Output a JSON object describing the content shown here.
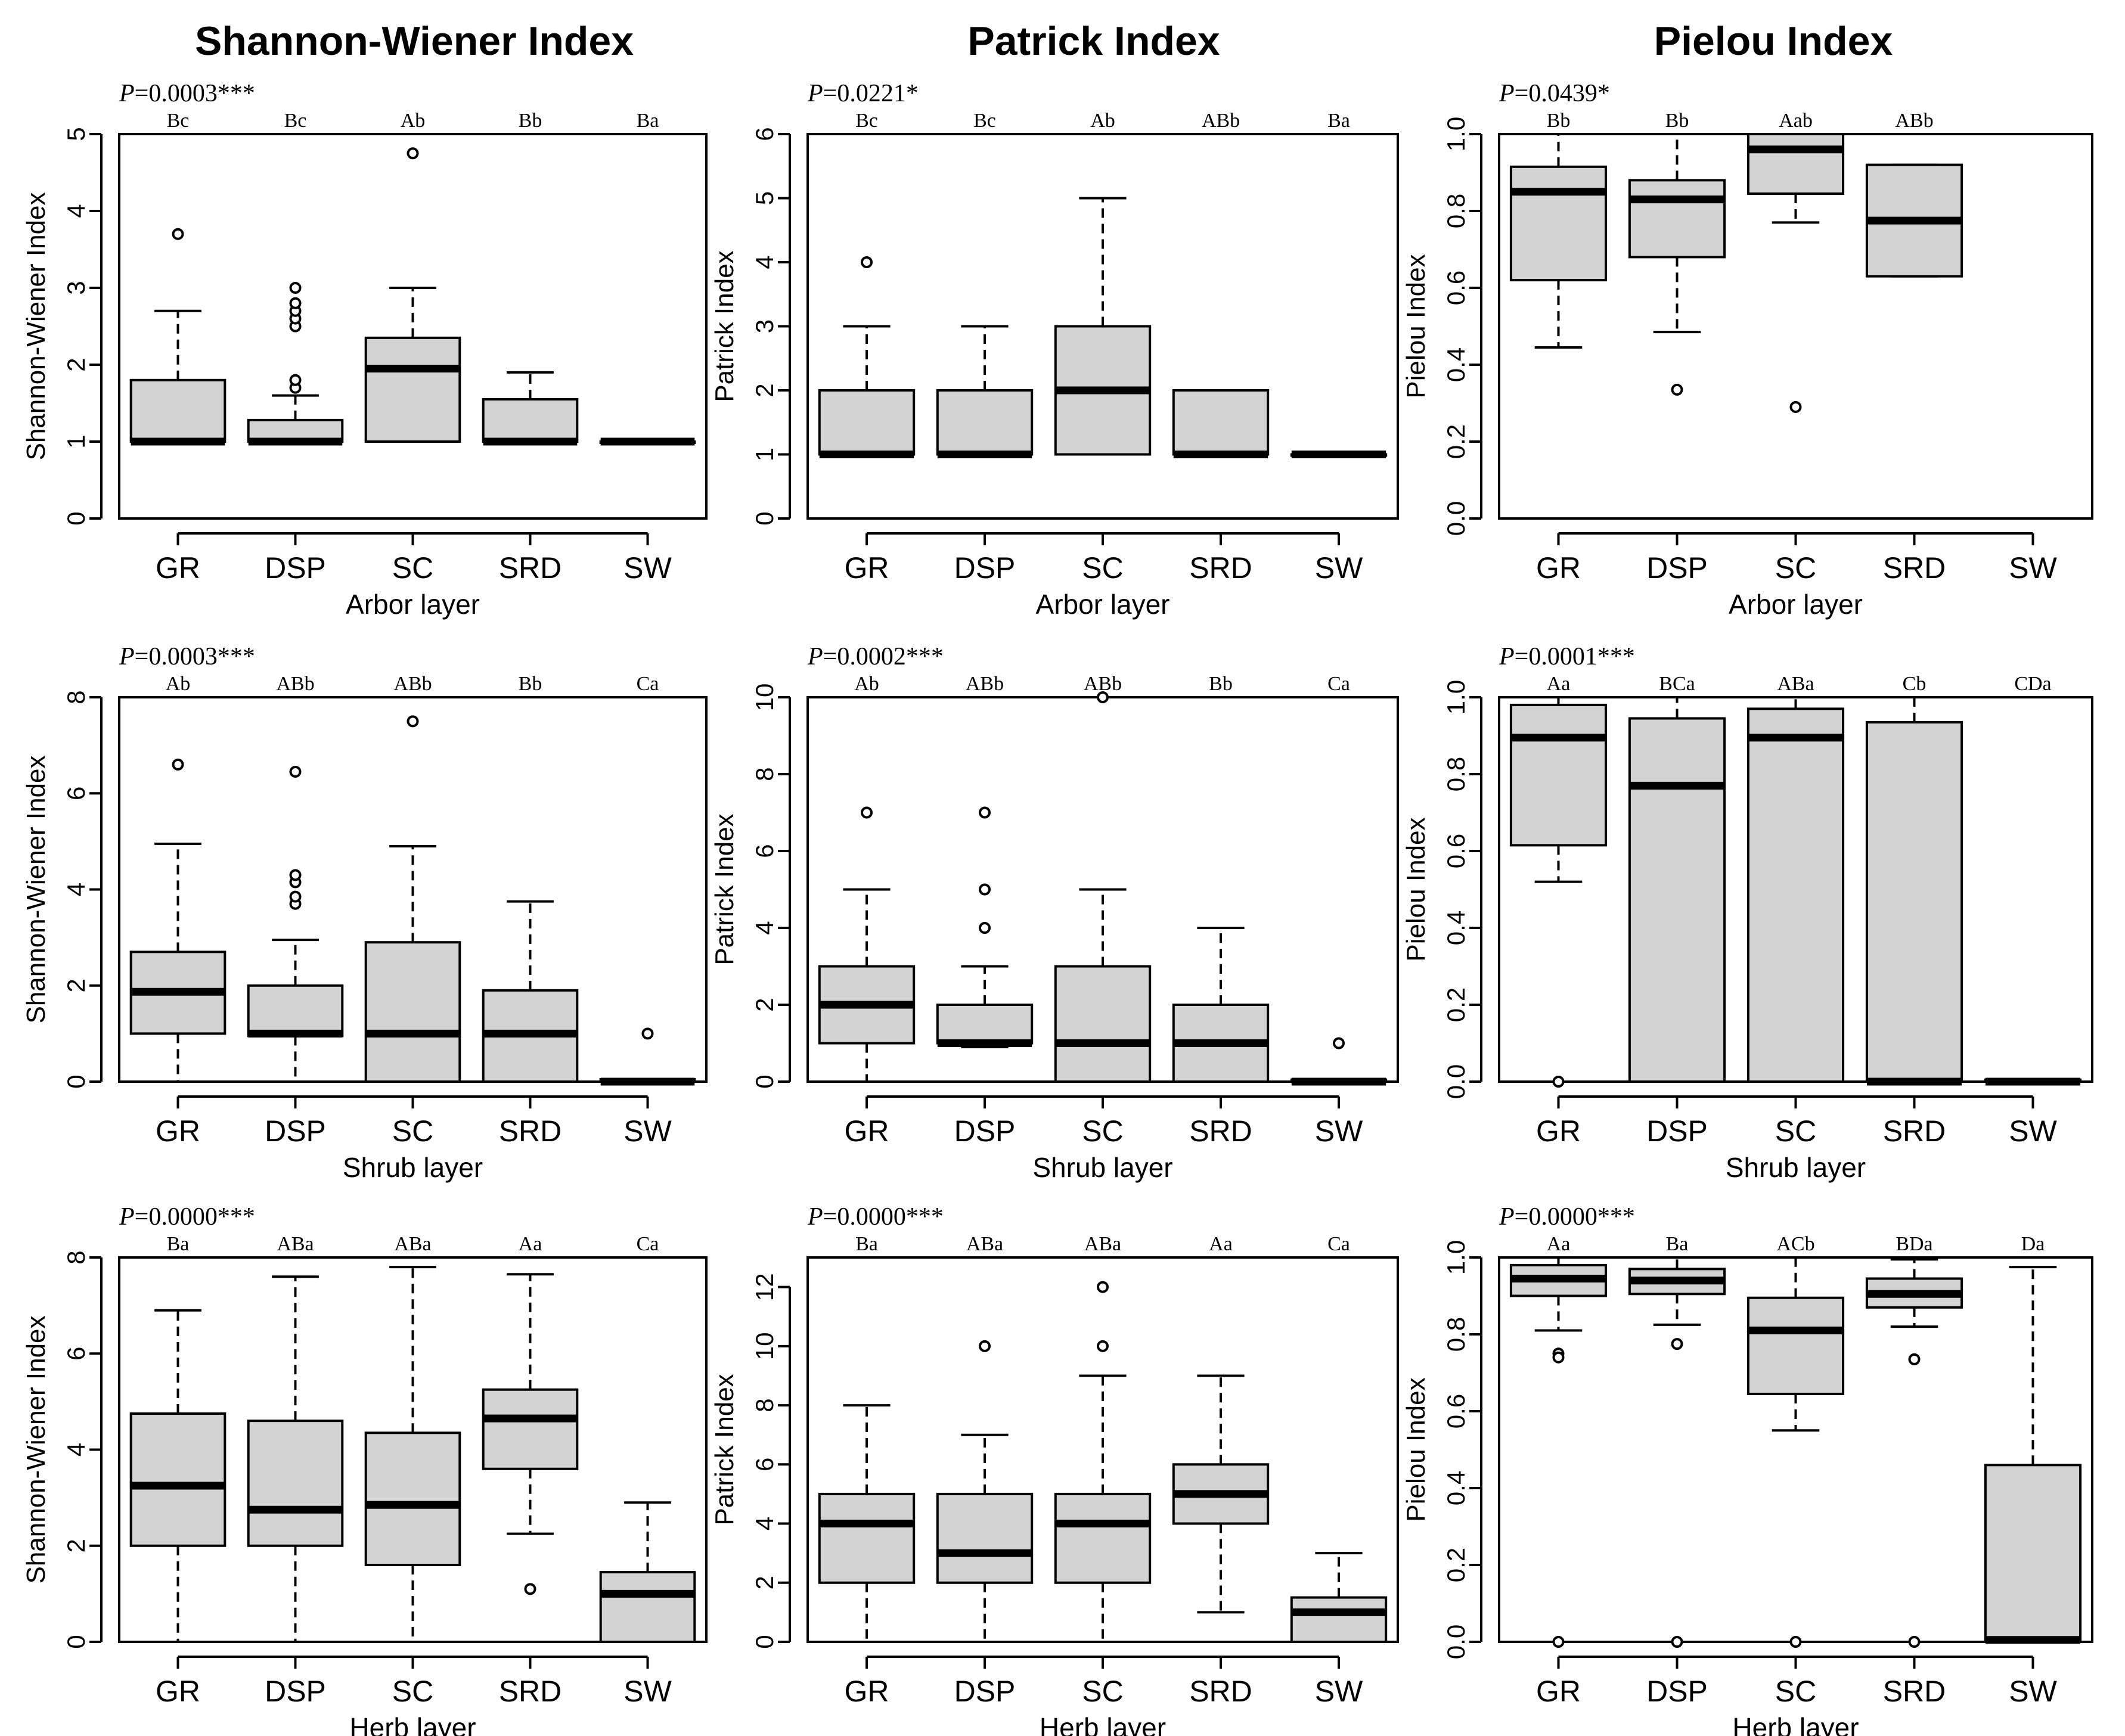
{
  "columns": [
    "Shannon-Wiener Index",
    "Patrick Index",
    "Pielou Index"
  ],
  "chart_data": [
    {
      "type": "box",
      "title": "Shannon-Wiener Index",
      "p_label": "P",
      "p_value": "=0.0003***",
      "ylabel": "Shannon-Wiener Index",
      "xlabel": "Arbor layer",
      "ylim": [
        0,
        5
      ],
      "yticks": [
        0,
        1,
        2,
        3,
        4,
        5
      ],
      "categories": [
        "GR",
        "DSP",
        "SC",
        "SRD",
        "SW"
      ],
      "group_letters": [
        "Bc",
        "Bc",
        "Ab",
        "Bb",
        "Ba"
      ],
      "boxes": [
        {
          "min": 1,
          "q1": 1,
          "median": 1,
          "q3": 1.8,
          "max": 2.7,
          "outliers": [
            3.7
          ]
        },
        {
          "min": 1,
          "q1": 1,
          "median": 1,
          "q3": 1.28,
          "max": 1.6,
          "outliers": [
            1.7,
            1.8,
            2.5,
            2.6,
            2.7,
            2.8,
            3.0
          ]
        },
        {
          "min": 1,
          "q1": 1,
          "median": 1.95,
          "q3": 2.35,
          "max": 3.0,
          "outliers": [
            4.75
          ]
        },
        {
          "min": 1,
          "q1": 1,
          "median": 1,
          "q3": 1.55,
          "max": 1.9,
          "outliers": []
        },
        {
          "min": 1,
          "q1": 1,
          "median": 1,
          "q3": 1,
          "max": 1,
          "outliers": []
        }
      ]
    },
    {
      "type": "box",
      "title": "Patrick Index",
      "p_label": "P",
      "p_value": "=0.0221*",
      "ylabel": "Patrick Index",
      "xlabel": "Arbor layer",
      "ylim": [
        0,
        6
      ],
      "yticks": [
        0,
        1,
        2,
        3,
        4,
        5,
        6
      ],
      "categories": [
        "GR",
        "DSP",
        "SC",
        "SRD",
        "SW"
      ],
      "group_letters": [
        "Bc",
        "Bc",
        "Ab",
        "ABb",
        "Ba"
      ],
      "boxes": [
        {
          "min": 1,
          "q1": 1,
          "median": 1,
          "q3": 2,
          "max": 3,
          "outliers": [
            4
          ]
        },
        {
          "min": 1,
          "q1": 1,
          "median": 1,
          "q3": 2,
          "max": 3,
          "outliers": []
        },
        {
          "min": 1,
          "q1": 1,
          "median": 2,
          "q3": 3,
          "max": 5,
          "outliers": []
        },
        {
          "min": 1,
          "q1": 1,
          "median": 1,
          "q3": 2,
          "max": 2,
          "outliers": []
        },
        {
          "min": 1,
          "q1": 1,
          "median": 1,
          "q3": 1,
          "max": 1,
          "outliers": []
        }
      ]
    },
    {
      "type": "box",
      "title": "Pielou Index",
      "p_label": "P",
      "p_value": "=0.0439*",
      "ylabel": "Pielou Index",
      "xlabel": "Arbor layer",
      "ylim": [
        0,
        1
      ],
      "yticks": [
        "0.0",
        "0.2",
        "0.4",
        "0.6",
        "0.8",
        "1.0"
      ],
      "categories": [
        "GR",
        "DSP",
        "SC",
        "SRD",
        "SW"
      ],
      "group_letters": [
        "Bb",
        "Bb",
        "Aab",
        "ABb",
        ""
      ],
      "boxes": [
        {
          "min": 0.445,
          "q1": 0.62,
          "median": 0.85,
          "q3": 0.915,
          "max": 1.0,
          "outliers": []
        },
        {
          "min": 0.485,
          "q1": 0.68,
          "median": 0.83,
          "q3": 0.88,
          "max": 1.0,
          "outliers": [
            0.335
          ]
        },
        {
          "min": 0.77,
          "q1": 0.845,
          "median": 0.96,
          "q3": 1.0,
          "max": 1.0,
          "outliers": [
            0.29
          ]
        },
        {
          "min": 0.63,
          "q1": 0.63,
          "median": 0.775,
          "q3": 0.92,
          "max": 0.92,
          "outliers": []
        },
        null
      ]
    },
    {
      "type": "box",
      "title": "Shannon-Wiener Index",
      "p_label": "P",
      "p_value": "=0.0003***",
      "ylabel": "Shannon-Wiener Index",
      "xlabel": "Shrub layer",
      "ylim": [
        0,
        8
      ],
      "yticks": [
        0,
        2,
        4,
        6,
        8
      ],
      "categories": [
        "GR",
        "DSP",
        "SC",
        "SRD",
        "SW"
      ],
      "group_letters": [
        "Ab",
        "ABb",
        "ABb",
        "Bb",
        "Ca"
      ],
      "boxes": [
        {
          "min": 0,
          "q1": 1,
          "median": 1.87,
          "q3": 2.7,
          "max": 4.95,
          "outliers": [
            6.6
          ]
        },
        {
          "min": 0,
          "q1": 0.95,
          "median": 1.0,
          "q3": 2.0,
          "max": 2.95,
          "outliers": [
            3.7,
            3.85,
            4.15,
            4.3,
            6.45
          ]
        },
        {
          "min": 0,
          "q1": 0,
          "median": 1.0,
          "q3": 2.9,
          "max": 4.9,
          "outliers": [
            7.5
          ]
        },
        {
          "min": 0,
          "q1": 0,
          "median": 1.0,
          "q3": 1.9,
          "max": 3.75,
          "outliers": []
        },
        {
          "min": 0,
          "q1": 0,
          "median": 0,
          "q3": 0.05,
          "max": 0.05,
          "outliers": [
            1.0
          ]
        }
      ]
    },
    {
      "type": "box",
      "title": "Patrick Index",
      "p_label": "P",
      "p_value": "=0.0002***",
      "ylabel": "Patrick Index",
      "xlabel": "Shrub layer",
      "ylim": [
        0,
        10
      ],
      "yticks": [
        0,
        2,
        4,
        6,
        8,
        10
      ],
      "categories": [
        "GR",
        "DSP",
        "SC",
        "SRD",
        "SW"
      ],
      "group_letters": [
        "Ab",
        "ABb",
        "ABb",
        "Bb",
        "Ca"
      ],
      "boxes": [
        {
          "min": 0,
          "q1": 1,
          "median": 2,
          "q3": 3,
          "max": 5,
          "outliers": [
            7
          ]
        },
        {
          "min": 0.9,
          "q1": 1,
          "median": 1,
          "q3": 2,
          "max": 3,
          "outliers": [
            4,
            5,
            7
          ]
        },
        {
          "min": 0,
          "q1": 0,
          "median": 1,
          "q3": 3,
          "max": 5,
          "outliers": [
            10
          ]
        },
        {
          "min": 0,
          "q1": 0,
          "median": 1,
          "q3": 2,
          "max": 4,
          "outliers": []
        },
        {
          "min": 0,
          "q1": 0,
          "median": 0,
          "q3": 0.05,
          "max": 0.05,
          "outliers": [
            1
          ]
        }
      ]
    },
    {
      "type": "box",
      "title": "Pielou Index",
      "p_label": "P",
      "p_value": "=0.0001***",
      "ylabel": "Pielou Index",
      "xlabel": "Shrub layer",
      "ylim": [
        0,
        1
      ],
      "yticks": [
        "0.0",
        "0.2",
        "0.4",
        "0.6",
        "0.8",
        "1.0"
      ],
      "categories": [
        "GR",
        "DSP",
        "SC",
        "SRD",
        "SW"
      ],
      "group_letters": [
        "Aa",
        "BCa",
        "ABa",
        "Cb",
        "CDa"
      ],
      "boxes": [
        {
          "min": 0.52,
          "q1": 0.615,
          "median": 0.895,
          "q3": 0.98,
          "max": 1.0,
          "outliers": [
            0.0
          ]
        },
        {
          "min": 0,
          "q1": 0,
          "median": 0.77,
          "q3": 0.945,
          "max": 1.0,
          "outliers": []
        },
        {
          "min": 0,
          "q1": 0,
          "median": 0.895,
          "q3": 0.97,
          "max": 1.0,
          "outliers": []
        },
        {
          "min": 0,
          "q1": 0,
          "median": 0,
          "q3": 0.935,
          "max": 1.0,
          "outliers": []
        },
        {
          "min": 0,
          "q1": 0,
          "median": 0,
          "q3": 0.005,
          "max": 0.005,
          "outliers": []
        }
      ]
    },
    {
      "type": "box",
      "title": "Shannon-Wiener Index",
      "p_label": "P",
      "p_value": "=0.0000***",
      "ylabel": "Shannon-Wiener Index",
      "xlabel": "Herb layer",
      "ylim": [
        0,
        8
      ],
      "yticks": [
        0,
        2,
        4,
        6,
        8
      ],
      "categories": [
        "GR",
        "DSP",
        "SC",
        "SRD",
        "SW"
      ],
      "group_letters": [
        "Ba",
        "ABa",
        "ABa",
        "Aa",
        "Ca"
      ],
      "boxes": [
        {
          "min": 0,
          "q1": 2.0,
          "median": 3.25,
          "q3": 4.75,
          "max": 6.9,
          "outliers": []
        },
        {
          "min": 0,
          "q1": 2.0,
          "median": 2.75,
          "q3": 4.6,
          "max": 7.6,
          "outliers": []
        },
        {
          "min": 0,
          "q1": 1.6,
          "median": 2.85,
          "q3": 4.35,
          "max": 7.8,
          "outliers": []
        },
        {
          "min": 2.25,
          "q1": 3.6,
          "median": 4.65,
          "q3": 5.25,
          "max": 7.65,
          "outliers": [
            1.1
          ]
        },
        {
          "min": 0,
          "q1": 0,
          "median": 1.0,
          "q3": 1.45,
          "max": 2.9,
          "outliers": []
        }
      ]
    },
    {
      "type": "box",
      "title": "Patrick Index",
      "p_label": "P",
      "p_value": "=0.0000***",
      "ylabel": "Patrick Index",
      "xlabel": "Herb layer",
      "ylim": [
        0,
        13
      ],
      "yticks": [
        0,
        2,
        4,
        6,
        8,
        10,
        12
      ],
      "categories": [
        "GR",
        "DSP",
        "SC",
        "SRD",
        "SW"
      ],
      "group_letters": [
        "Ba",
        "ABa",
        "ABa",
        "Aa",
        "Ca"
      ],
      "boxes": [
        {
          "min": 0,
          "q1": 2,
          "median": 4,
          "q3": 5,
          "max": 8,
          "outliers": []
        },
        {
          "min": 0,
          "q1": 2,
          "median": 3,
          "q3": 5,
          "max": 7,
          "outliers": [
            10
          ]
        },
        {
          "min": 0,
          "q1": 2,
          "median": 4,
          "q3": 5,
          "max": 9,
          "outliers": [
            10,
            12
          ]
        },
        {
          "min": 1,
          "q1": 4,
          "median": 5,
          "q3": 6,
          "max": 9,
          "outliers": []
        },
        {
          "min": 0,
          "q1": 0,
          "median": 1,
          "q3": 1.5,
          "max": 3,
          "outliers": []
        }
      ]
    },
    {
      "type": "box",
      "title": "Pielou Index",
      "p_label": "P",
      "p_value": "=0.0000***",
      "ylabel": "Pielou Index",
      "xlabel": "Herb layer",
      "ylim": [
        0,
        1
      ],
      "yticks": [
        "0.0",
        "0.2",
        "0.4",
        "0.6",
        "0.8",
        "1.0"
      ],
      "categories": [
        "GR",
        "DSP",
        "SC",
        "SRD",
        "SW"
      ],
      "group_letters": [
        "Aa",
        "Ba",
        "ACb",
        "BDa",
        "Da"
      ],
      "boxes": [
        {
          "min": 0.81,
          "q1": 0.9,
          "median": 0.945,
          "q3": 0.98,
          "max": 1.0,
          "outliers": [
            0.75,
            0.74,
            0.0
          ]
        },
        {
          "min": 0.825,
          "q1": 0.905,
          "median": 0.94,
          "q3": 0.97,
          "max": 1.0,
          "outliers": [
            0.775,
            0.0
          ]
        },
        {
          "min": 0.55,
          "q1": 0.645,
          "median": 0.81,
          "q3": 0.895,
          "max": 1.0,
          "outliers": [
            0.0
          ]
        },
        {
          "min": 0.82,
          "q1": 0.87,
          "median": 0.905,
          "q3": 0.945,
          "max": 0.995,
          "outliers": [
            0.735,
            0.0
          ]
        },
        {
          "min": 0,
          "q1": 0.005,
          "median": 0.005,
          "q3": 0.46,
          "max": 0.975,
          "outliers": []
        }
      ]
    }
  ]
}
